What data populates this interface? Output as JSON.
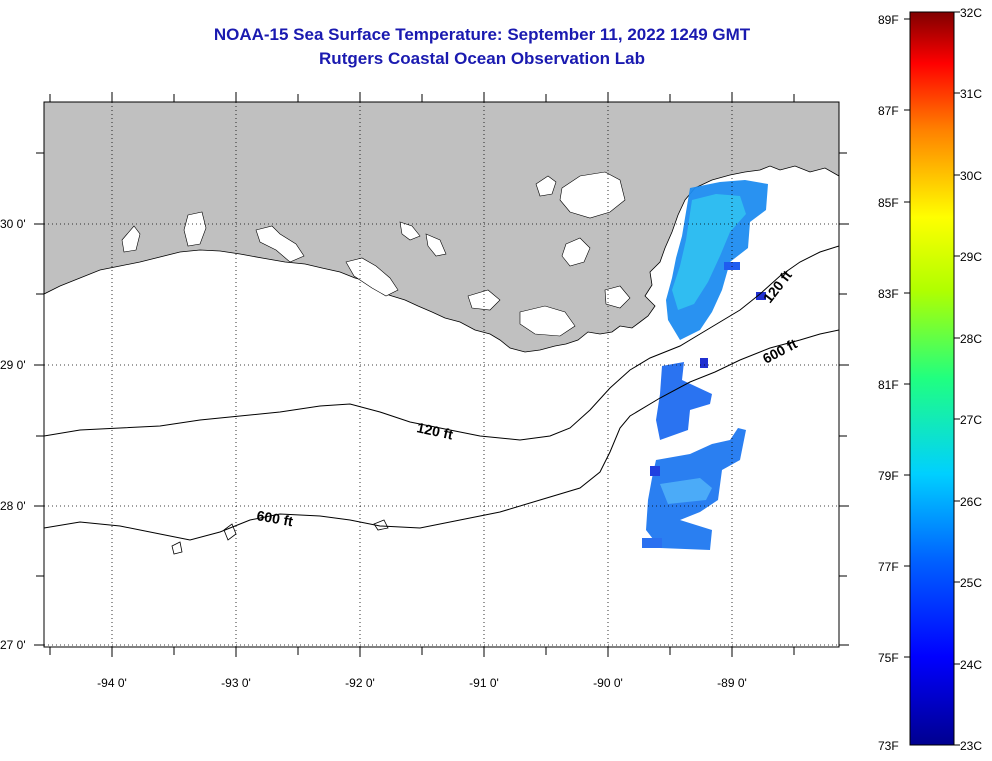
{
  "title_line1": "NOAA-15 Sea Surface Temperature:  September 11, 2022 1249 GMT",
  "title_line2": "Rutgers Coastal Ocean Observation Lab",
  "map": {
    "lon_ticks": [
      "-94 0'",
      "-93 0'",
      "-92 0'",
      "-91 0'",
      "-90 0'",
      "-89 0'"
    ],
    "lat_ticks": [
      "30 0'",
      "29 0'",
      "28 0'",
      "27 0'"
    ],
    "contour_labels": [
      "120 ft",
      "600 ft",
      "120 ft",
      "600 ft"
    ],
    "land_color": "#c0c0c0",
    "water_color": "#ffffff"
  },
  "colorbar": {
    "fahrenheit_labels": [
      "89F",
      "87F",
      "85F",
      "83F",
      "81F",
      "79F",
      "77F",
      "75F",
      "73F"
    ],
    "celsius_labels": [
      "32C",
      "31C",
      "30C",
      "29C",
      "28C",
      "27C",
      "26C",
      "25C",
      "24C",
      "23C"
    ],
    "min_c": 23,
    "max_c": 32
  }
}
